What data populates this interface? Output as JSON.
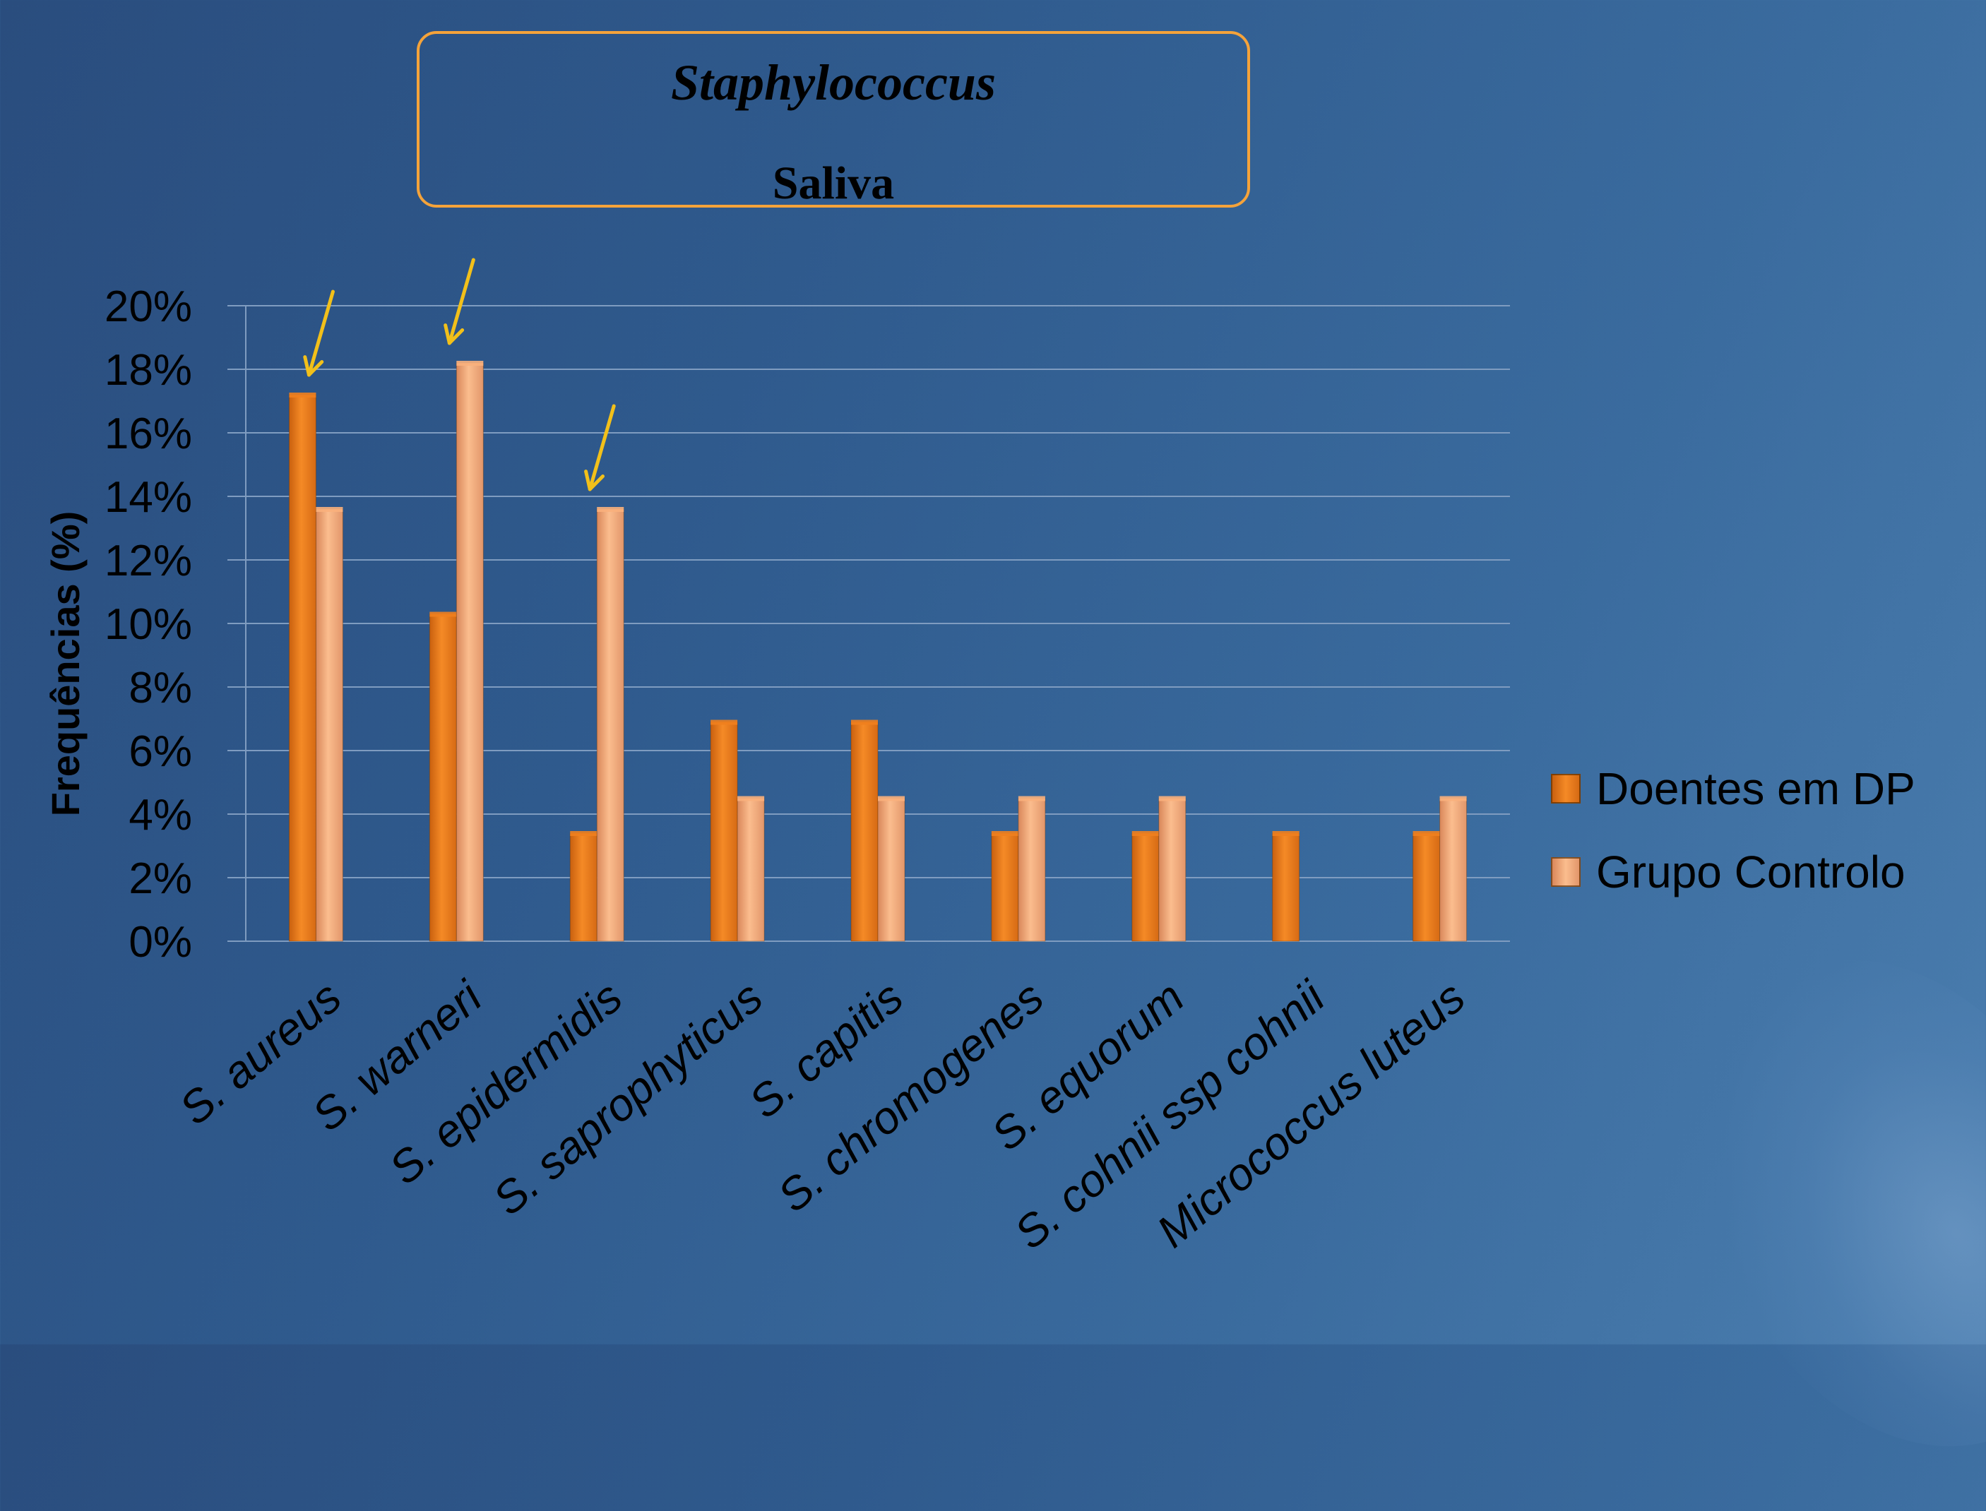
{
  "title": {
    "line1": "Staphylococcus",
    "line2": "Saliva"
  },
  "chart_data": {
    "type": "bar",
    "categories": [
      "S. aureus",
      "S. warneri",
      "S. epidermidis",
      "S. saprophyticus",
      "S. capitis",
      "S. chromogenes",
      "S. equorum",
      "S. cohnii ssp cohnii",
      "Micrococcus luteus"
    ],
    "series": [
      {
        "name": "Doentes em DP",
        "values": [
          17.2,
          10.3,
          3.4,
          6.9,
          6.9,
          3.4,
          3.4,
          3.4,
          3.4
        ]
      },
      {
        "name": "Grupo Controlo",
        "values": [
          13.6,
          18.2,
          13.6,
          4.5,
          4.5,
          4.5,
          4.5,
          0,
          4.5
        ]
      }
    ],
    "ylabel": "Frequências (%)",
    "ylim": [
      0,
      20
    ],
    "yticks": [
      "0%",
      "2%",
      "4%",
      "6%",
      "8%",
      "10%",
      "12%",
      "14%",
      "16%",
      "18%",
      "20%"
    ],
    "grid": true,
    "legend_position": "right",
    "highlighted_categories": [
      "S. aureus",
      "S. warneri",
      "S. epidermidis"
    ]
  },
  "colors": {
    "series1": "#f0801e",
    "series2": "#f9b07c",
    "arrow": "#f2c01a",
    "title_border": "#f5a33a",
    "grid": "#7f9cc0"
  }
}
